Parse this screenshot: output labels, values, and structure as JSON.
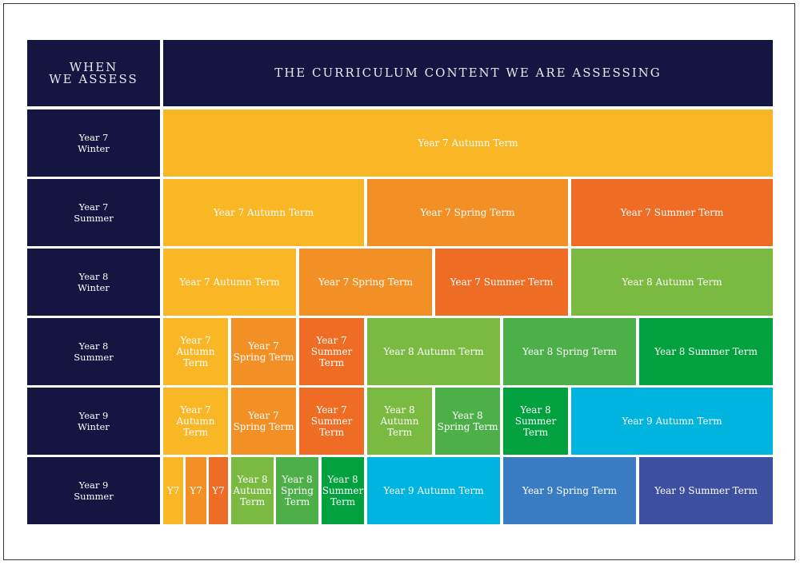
{
  "header": {
    "left": "WHEN\nWE ASSESS",
    "right": "THE CURRICULUM CONTENT WE ARE ASSESSING"
  },
  "colors": {
    "navy": "#141541",
    "y7_autumn": "#F9B625",
    "y7_spring": "#F29025",
    "y7_summer": "#EE6C24",
    "y8_autumn": "#7BBA41",
    "y8_spring": "#4DAF48",
    "y8_summer": "#00A13E",
    "y9_autumn": "#00B4E0",
    "y9_spring": "#3A7CC1",
    "y9_summer": "#3D4F9F"
  },
  "rows": [
    {
      "label": "Year 7\nWinter",
      "cells": [
        {
          "text": "Year 7 Autumn Term",
          "color": "y7_autumn"
        }
      ]
    },
    {
      "label": "Year 7\nSummer",
      "cells": [
        {
          "text": "Year 7 Autumn Term",
          "color": "y7_autumn"
        },
        {
          "text": "Year 7 Spring Term",
          "color": "y7_spring"
        },
        {
          "text": "Year 7 Summer Term",
          "color": "y7_summer"
        }
      ]
    },
    {
      "label": "Year 8\nWinter",
      "cells": [
        {
          "text": "Year 7 Autumn Term",
          "color": "y7_autumn"
        },
        {
          "text": "Year 7 Spring Term",
          "color": "y7_spring"
        },
        {
          "text": "Year 7 Summer Term",
          "color": "y7_summer"
        },
        {
          "text": "Year 8 Autumn Term",
          "color": "y8_autumn"
        }
      ]
    },
    {
      "label": "Year 8\nSummer",
      "cells": [
        {
          "text": "Year 7\nAutumn Term",
          "color": "y7_autumn"
        },
        {
          "text": "Year 7\nSpring Term",
          "color": "y7_spring"
        },
        {
          "text": "Year 7\nSummer Term",
          "color": "y7_summer"
        },
        {
          "text": "Year 8 Autumn Term",
          "color": "y8_autumn"
        },
        {
          "text": "Year 8 Spring Term",
          "color": "y8_spring"
        },
        {
          "text": "Year 8 Summer Term",
          "color": "y8_summer"
        }
      ]
    },
    {
      "label": "Year 9\nWinter",
      "cells": [
        {
          "text": "Year 7\nAutumn Term",
          "color": "y7_autumn"
        },
        {
          "text": "Year 7\nSpring Term",
          "color": "y7_spring"
        },
        {
          "text": "Year 7\nSummer Term",
          "color": "y7_summer"
        },
        {
          "text": "Year 8\nAutumn Term",
          "color": "y8_autumn"
        },
        {
          "text": "Year 8\nSpring Term",
          "color": "y8_spring"
        },
        {
          "text": "Year 8\nSummer Term",
          "color": "y8_summer"
        },
        {
          "text": "Year 9 Autumn Term",
          "color": "y9_autumn"
        }
      ]
    },
    {
      "label": "Year 9\nSummer",
      "cells": [
        {
          "text": "Y7",
          "color": "y7_autumn"
        },
        {
          "text": "Y7",
          "color": "y7_spring"
        },
        {
          "text": "Y7",
          "color": "y7_summer"
        },
        {
          "text": "Year 8\nAutumn\nTerm",
          "color": "y8_autumn"
        },
        {
          "text": "Year 8\nSpring\nTerm",
          "color": "y8_spring"
        },
        {
          "text": "Year 8\nSummer\nTerm",
          "color": "y8_summer"
        },
        {
          "text": "Year 9 Autumn Term",
          "color": "y9_autumn"
        },
        {
          "text": "Year 9 Spring Term",
          "color": "y9_spring"
        },
        {
          "text": "Year 9 Summer Term",
          "color": "y9_summer"
        }
      ]
    }
  ]
}
